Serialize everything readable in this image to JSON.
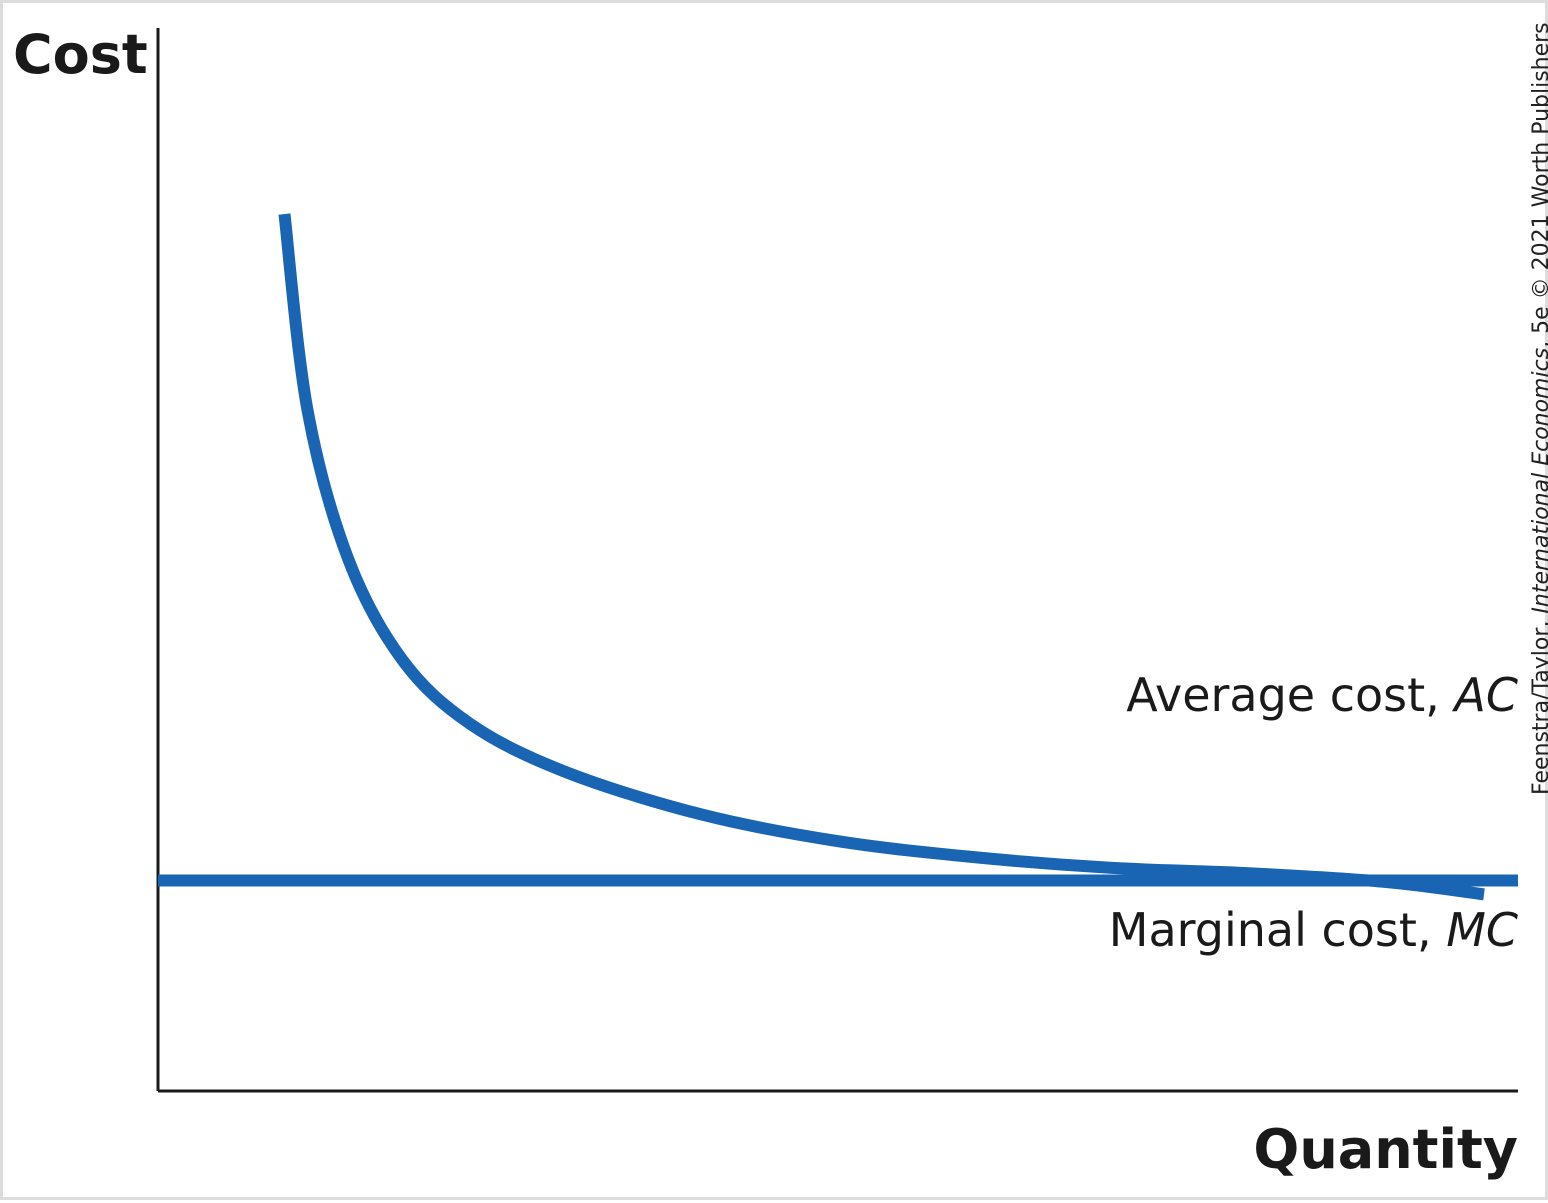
{
  "chart_data": {
    "type": "line",
    "title": "",
    "xlabel": "Quantity",
    "ylabel": "Cost",
    "xlim": [
      0,
      10
    ],
    "ylim": [
      0,
      10
    ],
    "grid": false,
    "legend": "none",
    "series": [
      {
        "name": "Average cost, AC",
        "label_text": "Average cost, ",
        "label_symbol": "AC",
        "color": "#1a64b4",
        "x": [
          0.93,
          1.1,
          1.4,
          1.8,
          2.3,
          3.0,
          4.0,
          5.0,
          6.0,
          7.0,
          8.0,
          9.0,
          9.75
        ],
        "y": [
          8.25,
          6.4,
          5.0,
          4.05,
          3.45,
          3.0,
          2.6,
          2.35,
          2.2,
          2.1,
          2.05,
          1.97,
          1.85
        ]
      },
      {
        "name": "Marginal cost, MC",
        "label_text": "Marginal cost, ",
        "label_symbol": "MC",
        "color": "#1a64b4",
        "x": [
          0,
          10
        ],
        "y": [
          1.98,
          1.98
        ]
      }
    ],
    "credit": {
      "prefix": "Feenstra/Taylor, ",
      "italic": "International Economics",
      "suffix": ", 5e © 2021 Worth Publishers"
    }
  }
}
